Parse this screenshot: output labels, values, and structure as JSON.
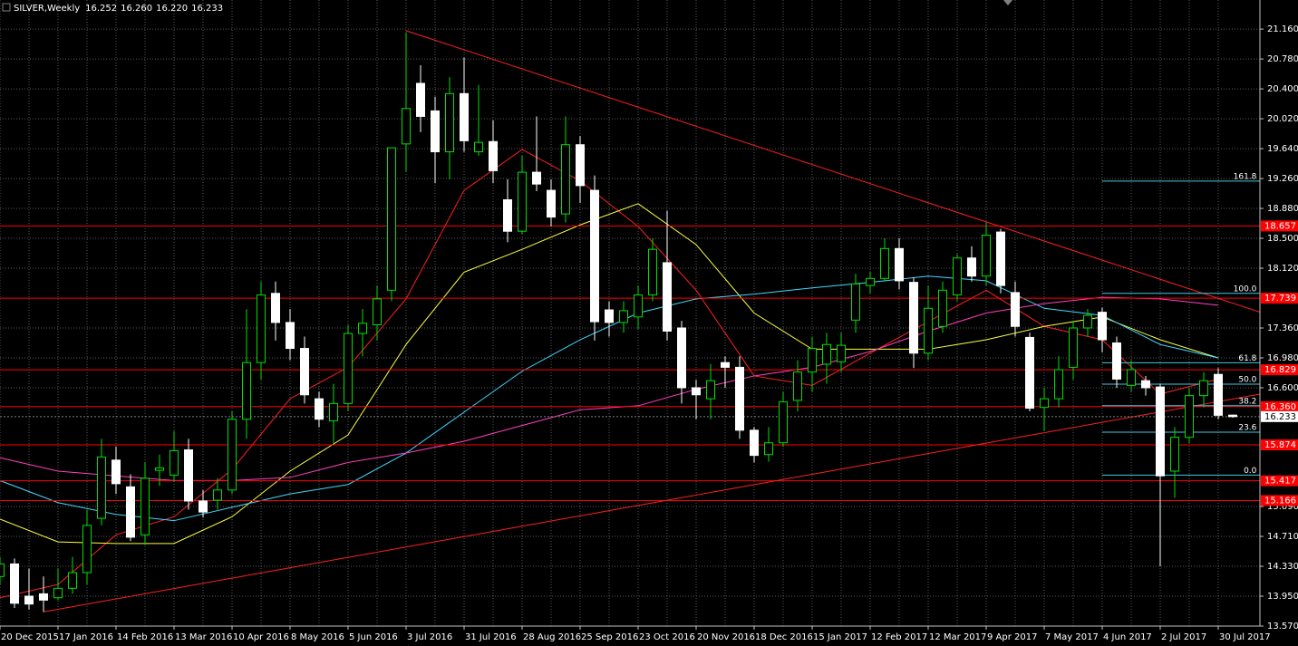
{
  "chart_data": {
    "type": "candlestick",
    "title": "SILVER,Weekly",
    "quote_labels": [
      "16.252",
      "16.260",
      "16.220",
      "16.233"
    ],
    "categories": [
      "20 Dec 2015",
      null,
      null,
      null,
      "17 Jan 2016",
      null,
      null,
      null,
      "14 Feb 2016",
      null,
      null,
      null,
      "13 Mar 2016",
      null,
      null,
      null,
      "10 Apr 2016",
      null,
      null,
      null,
      "8 May 2016",
      null,
      null,
      null,
      "5 Jun 2016",
      null,
      null,
      null,
      "3 Jul 2016",
      null,
      null,
      null,
      "31 Jul 2016",
      null,
      null,
      null,
      "28 Aug 2016",
      null,
      null,
      null,
      "25 Sep 2016",
      null,
      null,
      null,
      "23 Oct 2016",
      null,
      null,
      null,
      "20 Nov 2016",
      null,
      null,
      null,
      "18 Dec 2016",
      null,
      null,
      null,
      "15 Jan 2017",
      null,
      null,
      null,
      "12 Feb 2017",
      null,
      null,
      null,
      "12 Mar 2017",
      null,
      null,
      null,
      "9 Apr 2017",
      null,
      null,
      null,
      "7 May 2017",
      null,
      null,
      null,
      "4 Jun 2017",
      null,
      null,
      null,
      "2 Jul 2017",
      null,
      null,
      null,
      "30 Jul 2017",
      null
    ],
    "open": [
      14.2,
      14.36,
      13.95,
      13.98,
      13.93,
      14.05,
      14.25,
      14.94,
      15.68,
      15.34,
      14.73,
      15.55,
      15.49,
      15.81,
      15.16,
      15.17,
      15.3,
      16.2,
      16.92,
      17.8,
      17.43,
      17.1,
      16.46,
      16.18,
      16.4,
      17.29,
      17.4,
      17.84,
      19.7,
      20.47,
      20.12,
      19.6,
      20.34,
      19.6,
      19.73,
      18.99,
      18.59,
      19.34,
      19.11,
      18.81,
      19.69,
      19.11,
      17.59,
      17.43,
      17.5,
      17.78,
      18.19,
      17.36,
      16.6,
      16.46,
      16.92,
      16.86,
      16.06,
      15.75,
      15.9,
      16.44,
      16.8,
      16.9,
      16.93,
      17.46,
      17.9,
      17.99,
      18.37,
      17.94,
      17.04,
      17.38,
      17.78,
      18.25,
      18.02,
      18.58,
      17.81,
      17.24,
      16.35,
      16.46,
      16.86,
      17.36,
      17.56,
      17.17,
      16.63,
      16.69,
      16.61,
      15.54,
      15.97,
      16.5,
      16.77,
      16.252
    ],
    "high": [
      14.45,
      14.43,
      14.3,
      14.2,
      14.3,
      14.45,
      15.05,
      15.95,
      15.85,
      15.5,
      15.65,
      15.75,
      16.05,
      15.95,
      15.3,
      15.45,
      16.3,
      17.6,
      17.95,
      17.95,
      17.6,
      17.25,
      16.55,
      16.65,
      17.4,
      17.6,
      17.9,
      19.65,
      21.12,
      20.7,
      20.3,
      20.55,
      20.8,
      20.45,
      20.0,
      19.25,
      19.55,
      20.05,
      19.25,
      20.05,
      19.8,
      19.3,
      17.7,
      17.7,
      17.9,
      18.5,
      18.85,
      17.45,
      16.7,
      16.9,
      17.0,
      17.0,
      16.1,
      16.1,
      16.55,
      16.95,
      17.25,
      17.3,
      17.3,
      18.05,
      18.08,
      18.5,
      18.5,
      18.0,
      17.9,
      17.95,
      18.3,
      18.4,
      18.7,
      18.62,
      17.95,
      17.3,
      16.6,
      17.0,
      17.45,
      17.6,
      17.62,
      17.25,
      16.95,
      16.75,
      16.65,
      16.1,
      16.6,
      16.8,
      16.85,
      16.26
    ],
    "low": [
      14.1,
      13.8,
      13.78,
      13.75,
      13.9,
      13.98,
      14.1,
      14.85,
      15.25,
      14.65,
      14.6,
      15.35,
      15.4,
      15.05,
      14.95,
      15.05,
      15.25,
      15.95,
      16.7,
      17.2,
      16.95,
      16.4,
      16.1,
      15.9,
      16.3,
      17.0,
      17.2,
      17.7,
      19.35,
      19.85,
      19.2,
      19.25,
      19.6,
      19.55,
      19.2,
      18.45,
      18.55,
      19.1,
      18.65,
      18.7,
      18.95,
      17.2,
      17.25,
      17.3,
      17.35,
      17.7,
      17.2,
      16.4,
      16.2,
      16.2,
      16.6,
      15.95,
      15.65,
      15.66,
      15.85,
      16.3,
      16.55,
      16.65,
      16.8,
      17.3,
      17.8,
      17.95,
      17.85,
      16.85,
      16.95,
      17.3,
      17.7,
      17.95,
      17.9,
      17.8,
      17.25,
      16.3,
      16.05,
      16.35,
      16.7,
      17.25,
      17.05,
      16.6,
      16.55,
      16.5,
      14.33,
      15.2,
      15.9,
      16.35,
      16.2,
      16.22
    ],
    "close": [
      14.36,
      13.86,
      13.85,
      13.9,
      14.05,
      14.25,
      14.85,
      15.72,
      15.38,
      14.7,
      15.45,
      15.58,
      15.8,
      15.16,
      15.02,
      15.3,
      16.2,
      16.92,
      17.78,
      17.43,
      17.1,
      16.51,
      16.2,
      16.4,
      17.29,
      17.42,
      17.73,
      19.65,
      20.15,
      20.05,
      19.6,
      20.34,
      19.74,
      19.72,
      19.36,
      18.59,
      19.34,
      19.19,
      18.77,
      19.69,
      19.17,
      17.44,
      17.43,
      17.58,
      17.78,
      18.36,
      17.32,
      16.6,
      16.51,
      16.69,
      16.86,
      16.06,
      15.74,
      15.9,
      16.42,
      16.8,
      17.1,
      17.15,
      17.14,
      17.92,
      17.99,
      18.37,
      17.96,
      17.04,
      17.61,
      17.84,
      18.25,
      18.02,
      18.54,
      17.9,
      17.38,
      16.34,
      16.46,
      16.83,
      17.36,
      17.52,
      17.21,
      16.71,
      16.83,
      16.6,
      15.48,
      15.97,
      16.5,
      16.69,
      16.25,
      16.233
    ],
    "up_color": "#00e000",
    "down_color": "#ffffff",
    "ylim": [
      13.57,
      21.53
    ],
    "yticks": [
      {
        "value": 21.16,
        "label": "21.160"
      },
      {
        "value": 20.78,
        "label": "20.780"
      },
      {
        "value": 20.4,
        "label": "20.400"
      },
      {
        "value": 20.02,
        "label": "20.020"
      },
      {
        "value": 19.64,
        "label": "19.640"
      },
      {
        "value": 19.26,
        "label": "19.260"
      },
      {
        "value": 18.88,
        "label": "18.880"
      },
      {
        "value": 18.5,
        "label": "18.500"
      },
      {
        "value": 18.12,
        "label": "18.120"
      },
      {
        "value": 17.36,
        "label": "17.360"
      },
      {
        "value": 16.98,
        "label": "16.980"
      },
      {
        "value": 16.6,
        "label": "16.600"
      },
      {
        "value": 15.09,
        "label": "15.090"
      },
      {
        "value": 14.71,
        "label": "14.710"
      },
      {
        "value": 14.33,
        "label": "14.330"
      },
      {
        "value": 13.95,
        "label": "13.950"
      },
      {
        "value": 13.57,
        "label": "13.570"
      }
    ],
    "grid": true,
    "moving_averages": [
      {
        "color": "#ff2020",
        "x": [
          0,
          4,
          8,
          12,
          16,
          20,
          24,
          28,
          32,
          36,
          40,
          44,
          48,
          52,
          56,
          60,
          64,
          68,
          72,
          76,
          80,
          84
        ],
        "values": [
          13.93,
          14.1,
          14.73,
          14.96,
          15.56,
          16.46,
          16.86,
          17.73,
          19.11,
          19.63,
          19.23,
          18.65,
          17.84,
          16.75,
          16.63,
          17.04,
          17.44,
          17.84,
          17.38,
          17.21,
          16.52,
          16.71
        ]
      },
      {
        "color": "#ffff40",
        "x": [
          0,
          4,
          8,
          12,
          16,
          20,
          24,
          28,
          32,
          36,
          40,
          44,
          48,
          52,
          56,
          60,
          64,
          68,
          72,
          76,
          80,
          84
        ],
        "values": [
          14.93,
          14.64,
          14.62,
          14.62,
          14.96,
          15.54,
          16.0,
          17.15,
          18.07,
          18.36,
          18.67,
          18.94,
          18.42,
          17.55,
          17.09,
          17.09,
          17.09,
          17.21,
          17.38,
          17.5,
          17.21,
          16.98
        ]
      },
      {
        "color": "#40d8ff",
        "x": [
          0,
          4,
          8,
          12,
          16,
          20,
          24,
          28,
          32,
          36,
          40,
          44,
          48,
          52,
          56,
          60,
          64,
          68,
          72,
          76,
          80,
          84
        ],
        "values": [
          15.42,
          15.14,
          14.99,
          14.91,
          15.08,
          15.25,
          15.37,
          15.77,
          16.29,
          16.81,
          17.21,
          17.55,
          17.73,
          17.79,
          17.87,
          17.94,
          18.02,
          17.96,
          17.61,
          17.52,
          17.15,
          16.98
        ]
      },
      {
        "color": "#ff40c0",
        "x": [
          0,
          4,
          8,
          12,
          16,
          20,
          24,
          28,
          32,
          36,
          40,
          44,
          48,
          52,
          56,
          60,
          64,
          68,
          72,
          76,
          80,
          84
        ],
        "values": [
          15.71,
          15.54,
          15.48,
          15.42,
          15.42,
          15.46,
          15.65,
          15.77,
          15.92,
          16.12,
          16.32,
          16.37,
          16.58,
          16.75,
          16.86,
          17.06,
          17.32,
          17.55,
          17.67,
          17.75,
          17.73,
          17.65
        ]
      }
    ],
    "trendlines": [
      {
        "color": "#ff2020",
        "x": [
          28,
          86.9
        ],
        "values": [
          21.14,
          17.56
        ]
      },
      {
        "color": "#ff2020",
        "x": [
          3,
          86.9
        ],
        "values": [
          13.75,
          16.52
        ]
      }
    ],
    "levels": [
      18.657,
      17.739,
      16.829,
      {
        "value": 16.36,
        "label": "16.360"
      },
      15.874,
      15.417,
      15.166
    ],
    "level_color": "#ff0000",
    "fibonacci": {
      "color": "#40c8e0",
      "x": [
        76,
        86.9
      ],
      "levels": [
        {
          "label": "161.8",
          "value": 19.227
        },
        {
          "label": "100.0",
          "value": 17.8
        },
        {
          "label": "61.8",
          "value": 16.918
        },
        {
          "label": "50.0",
          "value": 16.645
        },
        {
          "label": "38.2",
          "value": 16.372
        },
        {
          "label": "23.6",
          "value": 16.035
        },
        {
          "label": "0.0",
          "value": 15.49
        }
      ]
    },
    "bid": {
      "value": 16.233,
      "label": "16.233"
    }
  }
}
